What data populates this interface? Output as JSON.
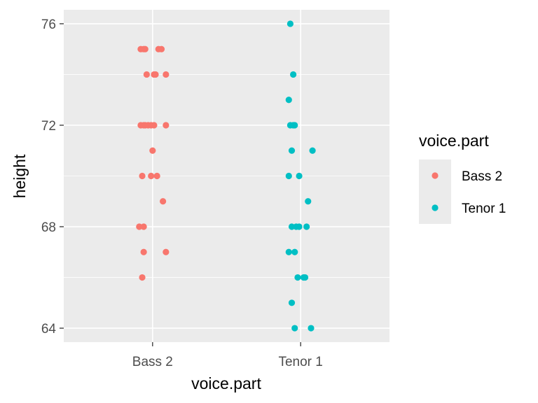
{
  "chart_data": {
    "type": "scatter",
    "xlabel": "voice.part",
    "ylabel": "height",
    "categories": [
      "Bass 2",
      "Tenor 1"
    ],
    "ylim": [
      63.45,
      76.55
    ],
    "yticks": [
      64,
      68,
      72,
      76
    ],
    "grid": true,
    "legend": {
      "title": "voice.part",
      "placement": "right",
      "entries": [
        "Bass 2",
        "Tenor 1"
      ]
    },
    "series": [
      {
        "name": "Bass 2",
        "color": "#F8766D",
        "points": [
          {
            "x": "Bass 2",
            "y": 75,
            "j": -0.08
          },
          {
            "x": "Bass 2",
            "y": 75,
            "j": -0.06
          },
          {
            "x": "Bass 2",
            "y": 75,
            "j": -0.05
          },
          {
            "x": "Bass 2",
            "y": 75,
            "j": 0.04
          },
          {
            "x": "Bass 2",
            "y": 75,
            "j": 0.06
          },
          {
            "x": "Bass 2",
            "y": 74,
            "j": -0.04
          },
          {
            "x": "Bass 2",
            "y": 74,
            "j": 0.01
          },
          {
            "x": "Bass 2",
            "y": 74,
            "j": 0.02
          },
          {
            "x": "Bass 2",
            "y": 74,
            "j": 0.09
          },
          {
            "x": "Bass 2",
            "y": 72,
            "j": -0.08
          },
          {
            "x": "Bass 2",
            "y": 72,
            "j": -0.06
          },
          {
            "x": "Bass 2",
            "y": 72,
            "j": -0.05
          },
          {
            "x": "Bass 2",
            "y": 72,
            "j": -0.03
          },
          {
            "x": "Bass 2",
            "y": 72,
            "j": -0.01
          },
          {
            "x": "Bass 2",
            "y": 72,
            "j": 0.01
          },
          {
            "x": "Bass 2",
            "y": 72,
            "j": 0.09
          },
          {
            "x": "Bass 2",
            "y": 71,
            "j": 0.0
          },
          {
            "x": "Bass 2",
            "y": 70,
            "j": -0.07
          },
          {
            "x": "Bass 2",
            "y": 70,
            "j": -0.01
          },
          {
            "x": "Bass 2",
            "y": 70,
            "j": 0.03
          },
          {
            "x": "Bass 2",
            "y": 69,
            "j": 0.07
          },
          {
            "x": "Bass 2",
            "y": 68,
            "j": -0.09
          },
          {
            "x": "Bass 2",
            "y": 68,
            "j": -0.06
          },
          {
            "x": "Bass 2",
            "y": 67,
            "j": -0.06
          },
          {
            "x": "Bass 2",
            "y": 67,
            "j": 0.09
          },
          {
            "x": "Bass 2",
            "y": 66,
            "j": -0.07
          }
        ]
      },
      {
        "name": "Tenor 1",
        "color": "#00BFC4",
        "points": [
          {
            "x": "Tenor 1",
            "y": 76,
            "j": -0.07
          },
          {
            "x": "Tenor 1",
            "y": 74,
            "j": -0.05
          },
          {
            "x": "Tenor 1",
            "y": 73,
            "j": -0.08
          },
          {
            "x": "Tenor 1",
            "y": 72,
            "j": -0.07
          },
          {
            "x": "Tenor 1",
            "y": 72,
            "j": -0.05
          },
          {
            "x": "Tenor 1",
            "y": 72,
            "j": -0.04
          },
          {
            "x": "Tenor 1",
            "y": 71,
            "j": -0.06
          },
          {
            "x": "Tenor 1",
            "y": 71,
            "j": 0.08
          },
          {
            "x": "Tenor 1",
            "y": 70,
            "j": -0.08
          },
          {
            "x": "Tenor 1",
            "y": 70,
            "j": -0.01
          },
          {
            "x": "Tenor 1",
            "y": 69,
            "j": 0.05
          },
          {
            "x": "Tenor 1",
            "y": 68,
            "j": -0.06
          },
          {
            "x": "Tenor 1",
            "y": 68,
            "j": -0.03
          },
          {
            "x": "Tenor 1",
            "y": 68,
            "j": -0.01
          },
          {
            "x": "Tenor 1",
            "y": 68,
            "j": 0.04
          },
          {
            "x": "Tenor 1",
            "y": 67,
            "j": -0.08
          },
          {
            "x": "Tenor 1",
            "y": 67,
            "j": -0.04
          },
          {
            "x": "Tenor 1",
            "y": 66,
            "j": -0.02
          },
          {
            "x": "Tenor 1",
            "y": 66,
            "j": 0.02
          },
          {
            "x": "Tenor 1",
            "y": 66,
            "j": 0.03
          },
          {
            "x": "Tenor 1",
            "y": 65,
            "j": -0.06
          },
          {
            "x": "Tenor 1",
            "y": 64,
            "j": -0.04
          },
          {
            "x": "Tenor 1",
            "y": 64,
            "j": 0.07
          }
        ]
      }
    ]
  }
}
